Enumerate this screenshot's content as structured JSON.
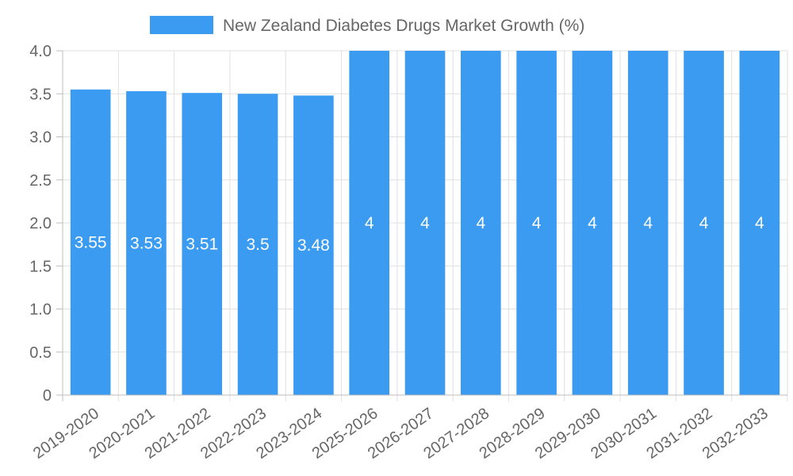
{
  "chart_data": {
    "type": "bar",
    "title": "",
    "legend": {
      "label": "New Zealand Diabetes Drugs Market Growth (%)",
      "position": "top-center"
    },
    "categories": [
      "2019-2020",
      "2020-2021",
      "2021-2022",
      "2022-2023",
      "2023-2024",
      "2025-2026",
      "2026-2027",
      "2027-2028",
      "2028-2029",
      "2029-2030",
      "2030-2031",
      "2031-2032",
      "2032-2033"
    ],
    "series": [
      {
        "name": "New Zealand Diabetes Drugs Market Growth (%)",
        "values": [
          3.55,
          3.53,
          3.51,
          3.5,
          3.48,
          4,
          4,
          4,
          4,
          4,
          4,
          4,
          4
        ],
        "color": "#3a9bf0"
      }
    ],
    "data_labels": [
      "3.55",
      "3.53",
      "3.51",
      "3.5",
      "3.48",
      "4",
      "4",
      "4",
      "4",
      "4",
      "4",
      "4",
      "4"
    ],
    "y_ticks": [
      "0",
      "0.5",
      "1.0",
      "1.5",
      "2.0",
      "2.5",
      "3.0",
      "3.5",
      "4.0"
    ],
    "ylim": [
      0,
      4
    ],
    "xlabel": "",
    "ylabel": "",
    "grid": true,
    "colors": {
      "grid": "#e0e0e0",
      "axis": "#bdbdbd",
      "text": "#666666",
      "label": "#ffffff"
    }
  }
}
